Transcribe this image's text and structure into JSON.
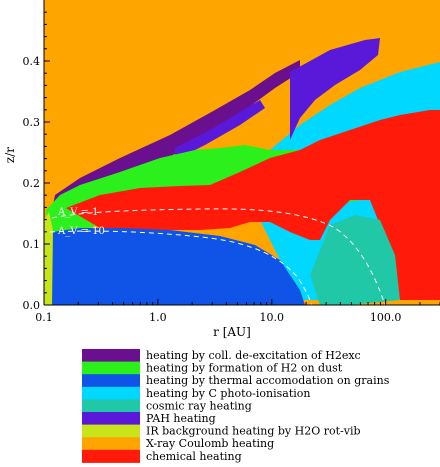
{
  "chart_data": {
    "type": "heatmap",
    "xlabel": "r [AU]",
    "ylabel": "z/r",
    "xscale": "log",
    "xlim": [
      0.1,
      300
    ],
    "ylim": [
      0.0,
      0.5
    ],
    "x_ticks": [
      {
        "value": 0.1,
        "label": "0.1"
      },
      {
        "value": 1.0,
        "label": "1.0"
      },
      {
        "value": 10.0,
        "label": "10.0"
      },
      {
        "value": 100.0,
        "label": "100.0"
      }
    ],
    "y_ticks": [
      {
        "value": 0.0,
        "label": "0.0"
      },
      {
        "value": 0.1,
        "label": "0.1"
      },
      {
        "value": 0.2,
        "label": "0.2"
      },
      {
        "value": 0.3,
        "label": "0.3"
      },
      {
        "value": 0.4,
        "label": "0.4"
      }
    ],
    "legend": [
      {
        "label": "heating by coll. de-excitation of H2exc",
        "color": "#6a0f8e"
      },
      {
        "label": "heating by formation of H2 on dust",
        "color": "#2bf01c"
      },
      {
        "label": "heating by thermal accomodation on grains",
        "color": "#0f54e6"
      },
      {
        "label": "heating by C photo-ionisation",
        "color": "#00d8ff"
      },
      {
        "label": "cosmic ray heating",
        "color": "#20c8a8"
      },
      {
        "label": "PAH heating",
        "color": "#5a18d8"
      },
      {
        "label": "IR background heating by H2O rot-vib",
        "color": "#c8e41a"
      },
      {
        "label": "X-ray Coulomb heating",
        "color": "#ffa500"
      },
      {
        "label": "chemical heating",
        "color": "#ff1a0a"
      }
    ],
    "legend_placement": "below",
    "background_process": "X-ray Coulomb heating",
    "contours": [
      {
        "label": "A_V = 1",
        "style": "dashed",
        "color": "#ffffff"
      },
      {
        "label": "A_V = 10",
        "style": "dashed",
        "color": "#ffffff"
      }
    ],
    "annotations": [
      "A_V = 1",
      "A_V = 10"
    ]
  }
}
